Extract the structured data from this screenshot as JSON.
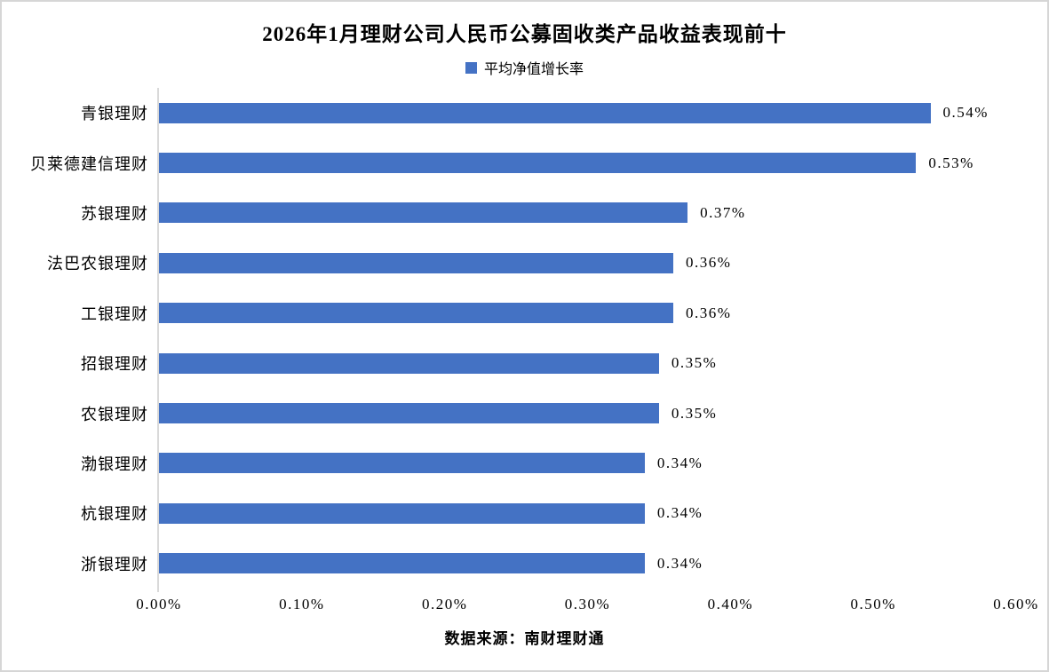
{
  "page": {
    "title": "2026年1月理财公司人民币公募固收类产品收益表现前十",
    "source": "数据来源：南财理财通"
  },
  "legend": {
    "label": "平均净值增长率",
    "marker_color": "#4472c4"
  },
  "colors": {
    "bar": "#4472c4",
    "axis_line": "#d9d9d9",
    "frame_border": "#d6d6d6",
    "text": "#000000"
  },
  "chart_data": {
    "type": "bar",
    "orientation": "horizontal",
    "title": "2026年1月理财公司人民币公募固收类产品收益表现前十",
    "series_name": "平均净值增长率",
    "categories": [
      "青银理财",
      "贝莱德建信理财",
      "苏银理财",
      "法巴农银理财",
      "工银理财",
      "招银理财",
      "农银理财",
      "渤银理财",
      "杭银理财",
      "浙银理财"
    ],
    "values": [
      0.54,
      0.53,
      0.37,
      0.36,
      0.36,
      0.35,
      0.35,
      0.34,
      0.34,
      0.34
    ],
    "value_labels": [
      "0.54%",
      "0.53%",
      "0.37%",
      "0.36%",
      "0.36%",
      "0.35%",
      "0.35%",
      "0.34%",
      "0.34%",
      "0.34%"
    ],
    "x_ticks": [
      "0.00%",
      "0.10%",
      "0.20%",
      "0.30%",
      "0.40%",
      "0.50%",
      "0.60%"
    ],
    "xlim": [
      0,
      0.6
    ],
    "xlabel": "",
    "ylabel": "",
    "grid": false,
    "legend_position": "top",
    "value_labels_shown": true,
    "source": "数据来源：南财理财通"
  }
}
